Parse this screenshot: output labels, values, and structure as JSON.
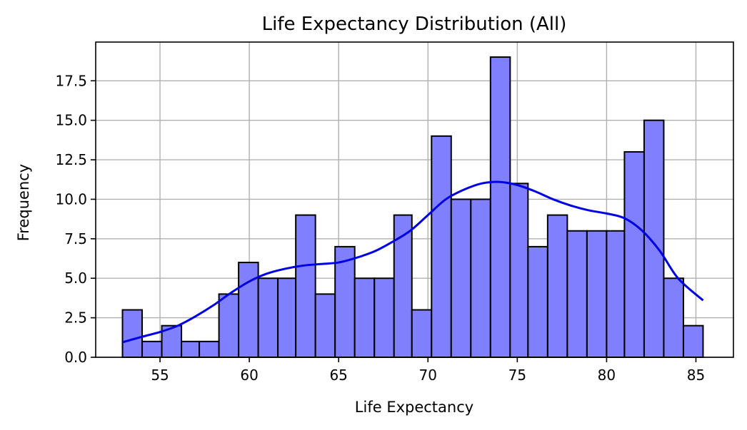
{
  "chart_data": {
    "type": "histogram",
    "title": "Life Expectancy Distribution (All)",
    "xlabel": "Life Expectancy",
    "ylabel": "Frequency",
    "xlim": [
      51.4,
      87.1
    ],
    "ylim": [
      0,
      19.95
    ],
    "grid": true,
    "bin_edges": [
      52.9,
      54.0,
      55.1,
      56.2,
      57.2,
      58.3,
      59.4,
      60.5,
      61.6,
      62.6,
      63.7,
      64.8,
      65.9,
      67.0,
      68.1,
      69.1,
      70.2,
      71.3,
      72.4,
      73.5,
      74.6,
      75.6,
      76.7,
      77.8,
      78.9,
      80.0,
      81.0,
      82.1,
      83.2,
      84.3,
      85.4
    ],
    "values": [
      3,
      1,
      2,
      1,
      1,
      4,
      6,
      5,
      5,
      9,
      4,
      7,
      5,
      5,
      9,
      3,
      14,
      10,
      10,
      19,
      11,
      7,
      9,
      8,
      8,
      8,
      13,
      15,
      5,
      2
    ],
    "x_ticks": [
      "55",
      "60",
      "65",
      "70",
      "75",
      "80",
      "85"
    ],
    "x_tick_values": [
      55,
      60,
      65,
      70,
      75,
      80,
      85
    ],
    "y_ticks": [
      "0.0",
      "2.5",
      "5.0",
      "7.5",
      "10.0",
      "12.5",
      "15.0",
      "17.5"
    ],
    "y_tick_values": [
      0,
      2.5,
      5,
      7.5,
      10,
      12.5,
      15,
      17.5
    ],
    "kde": {
      "x": [
        52.9,
        54,
        55,
        56,
        57,
        58,
        59,
        60,
        61,
        62,
        63,
        64,
        65,
        66,
        67,
        68,
        69,
        70,
        71,
        72,
        73,
        74,
        75,
        76,
        77,
        78,
        79,
        80,
        81,
        82,
        83,
        84,
        85.4
      ],
      "y": [
        0.95,
        1.3,
        1.6,
        2.0,
        2.6,
        3.3,
        4.1,
        4.8,
        5.3,
        5.6,
        5.8,
        5.9,
        6.0,
        6.3,
        6.7,
        7.3,
        8.0,
        9.0,
        10.0,
        10.6,
        11.0,
        11.1,
        10.9,
        10.5,
        10.0,
        9.6,
        9.3,
        9.1,
        8.8,
        8.0,
        6.7,
        5.0,
        3.6
      ]
    },
    "colors": {
      "bar_fill": "#8080ff",
      "bar_edge": "#000000",
      "kde_line": "#0000e6",
      "grid": "#b0b0b0"
    }
  }
}
